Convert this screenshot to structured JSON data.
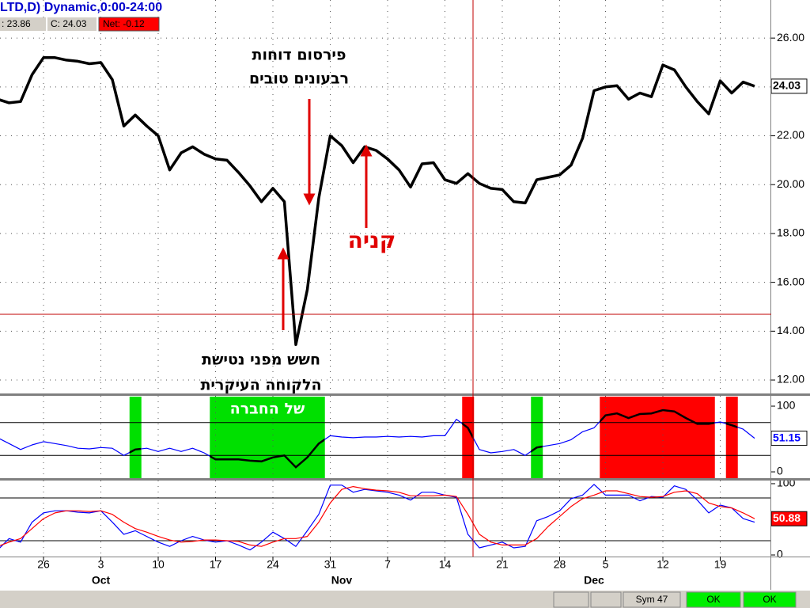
{
  "header": {
    "title": "LTD,D) Dynamic,0:00-24:00",
    "low": ": 23.86",
    "close": "C: 24.03",
    "net": "Net: -0.12"
  },
  "annotations": {
    "reports": [
      "פירסום דוחות",
      "רבעונים טובים"
    ],
    "buy": "קניה",
    "fear": [
      "חשש מפני נטישת",
      "הלקוחה העיקרית",
      "של החברה"
    ]
  },
  "status_bar": {
    "symbol": "Sym 47",
    "status1": "OK",
    "status2": "OK"
  },
  "chart_data": [
    {
      "type": "line",
      "categories": [
        null,
        null,
        null,
        null,
        "26",
        null,
        null,
        null,
        null,
        "3",
        null,
        null,
        null,
        null,
        "10",
        null,
        null,
        null,
        null,
        "17",
        null,
        null,
        null,
        null,
        "24",
        null,
        null,
        null,
        null,
        "31",
        null,
        null,
        null,
        null,
        "7",
        null,
        null,
        null,
        null,
        "14",
        null,
        null,
        null,
        null,
        "21",
        null,
        null,
        null,
        null,
        "28",
        null,
        null,
        null,
        "5",
        null,
        null,
        null,
        null,
        "12",
        null,
        null,
        null,
        null,
        "19",
        null,
        null,
        null
      ],
      "month_categories": [
        null,
        null,
        null,
        null,
        null,
        null,
        null,
        null,
        null,
        "Oct",
        null,
        null,
        null,
        null,
        null,
        null,
        null,
        null,
        null,
        null,
        null,
        null,
        null,
        null,
        null,
        null,
        null,
        null,
        null,
        null,
        "Nov",
        null,
        null,
        null,
        null,
        null,
        null,
        null,
        null,
        null,
        null,
        null,
        null,
        null,
        null,
        null,
        null,
        null,
        null,
        null,
        null,
        null,
        "Dec",
        null,
        null,
        null,
        null,
        null,
        null,
        null,
        null,
        null,
        null,
        null,
        null,
        null,
        null
      ],
      "series": [
        {
          "color": "#000000",
          "values": [
            23.5,
            23.35,
            23.4,
            24.5,
            25.2,
            25.2,
            25.1,
            25.05,
            24.95,
            25.0,
            24.3,
            22.4,
            22.85,
            22.4,
            22.0,
            20.6,
            21.3,
            21.55,
            21.25,
            21.05,
            21.0,
            20.5,
            19.95,
            19.3,
            19.85,
            19.3,
            13.45,
            15.7,
            19.45,
            22.0,
            21.6,
            20.9,
            21.55,
            21.4,
            21.05,
            20.6,
            19.9,
            20.85,
            20.9,
            20.2,
            20.05,
            20.45,
            20.05,
            19.85,
            19.8,
            19.3,
            19.25,
            20.2,
            20.3,
            20.4,
            20.8,
            21.9,
            23.85,
            24.0,
            24.05,
            23.5,
            23.75,
            23.6,
            24.9,
            24.7,
            24.0,
            23.4,
            22.9,
            24.25,
            23.75,
            24.2,
            24.03
          ]
        }
      ],
      "ylim": [
        11.45,
        27.56
      ],
      "yticks": [
        {
          "value": 12,
          "label": "12.00"
        },
        {
          "value": 14,
          "label": "14.00"
        },
        {
          "value": 16,
          "label": "16.00"
        },
        {
          "value": 18,
          "label": "18.00"
        },
        {
          "value": 20,
          "label": "20.00"
        },
        {
          "value": 22,
          "label": "22.00"
        },
        {
          "value": 24,
          "label": "24.00"
        },
        {
          "value": 26,
          "label": "26.00"
        }
      ],
      "grid": true
    },
    {
      "type": "line",
      "series": [
        {
          "color": "#0000ff",
          "values": [
            52,
            43,
            34,
            41,
            46,
            43,
            40,
            36,
            35,
            37,
            36,
            25,
            34,
            36,
            31,
            36,
            31,
            36,
            29,
            19,
            19,
            19,
            17,
            16,
            22,
            25,
            7,
            22,
            43,
            55,
            53,
            52,
            53,
            53,
            54,
            53,
            54,
            53,
            55,
            55,
            80,
            67,
            34,
            29,
            31,
            34,
            25,
            37,
            40,
            43,
            49,
            61,
            67,
            86,
            89,
            82,
            88,
            89,
            94,
            92,
            82,
            73,
            73,
            76,
            71,
            65,
            51.15
          ]
        }
      ],
      "zones": [
        null,
        null,
        null,
        null,
        null,
        null,
        null,
        null,
        null,
        null,
        null,
        null,
        "#00e000",
        null,
        null,
        null,
        null,
        null,
        null,
        "#00e000",
        "#00e000",
        "#00e000",
        "#00e000",
        "#00e000",
        "#00e000",
        "#00e000",
        "#00e000",
        "#00e000",
        "#00e000",
        null,
        null,
        null,
        null,
        null,
        null,
        null,
        null,
        null,
        null,
        null,
        null,
        "#ff0000",
        null,
        null,
        null,
        null,
        null,
        "#00e000",
        null,
        null,
        null,
        null,
        null,
        "#ff0000",
        "#ff0000",
        "#ff0000",
        "#ff0000",
        "#ff0000",
        "#ff0000",
        "#ff0000",
        "#ff0000",
        "#ff0000",
        "#ff0000",
        null,
        "#ff0000",
        null,
        null
      ],
      "ylim": [
        -9.6,
        115.7
      ],
      "yticks": [
        0,
        100
      ],
      "levels": [
        25,
        75
      ],
      "grid": true
    },
    {
      "type": "line",
      "series": [
        {
          "color": "#0000ff",
          "values": [
            7,
            23,
            18,
            46,
            59,
            62,
            62,
            60,
            59,
            62,
            46,
            29,
            34,
            26,
            18,
            12,
            20,
            26,
            21,
            18,
            20,
            14,
            7,
            18,
            32,
            23,
            12,
            34,
            57,
            98,
            98,
            88,
            92,
            90,
            88,
            84,
            77,
            88,
            88,
            84,
            81,
            29,
            10,
            14,
            18,
            10,
            12,
            48,
            54,
            62,
            79,
            84,
            99,
            84,
            84,
            84,
            76,
            82,
            81,
            97,
            92,
            77,
            59,
            70,
            66,
            51,
            46
          ]
        },
        {
          "color": "#ff0000",
          "values": [
            12,
            18,
            23,
            37,
            51,
            59,
            62,
            62,
            61,
            62,
            57,
            46,
            37,
            32,
            26,
            21,
            18,
            19,
            21,
            21,
            20,
            19,
            14,
            12,
            18,
            23,
            23,
            26,
            46,
            73,
            92,
            96,
            93,
            91,
            90,
            88,
            83,
            83,
            83,
            84,
            82,
            57,
            29,
            18,
            14,
            14,
            14,
            23,
            40,
            54,
            68,
            79,
            84,
            90,
            90,
            86,
            82,
            81,
            82,
            88,
            90,
            86,
            73,
            68,
            66,
            59,
            50.88
          ]
        }
      ],
      "ylim": [
        -2.2,
        104.4
      ],
      "yticks": [
        0,
        100
      ],
      "levels": [
        20,
        80
      ],
      "grid": true
    }
  ]
}
